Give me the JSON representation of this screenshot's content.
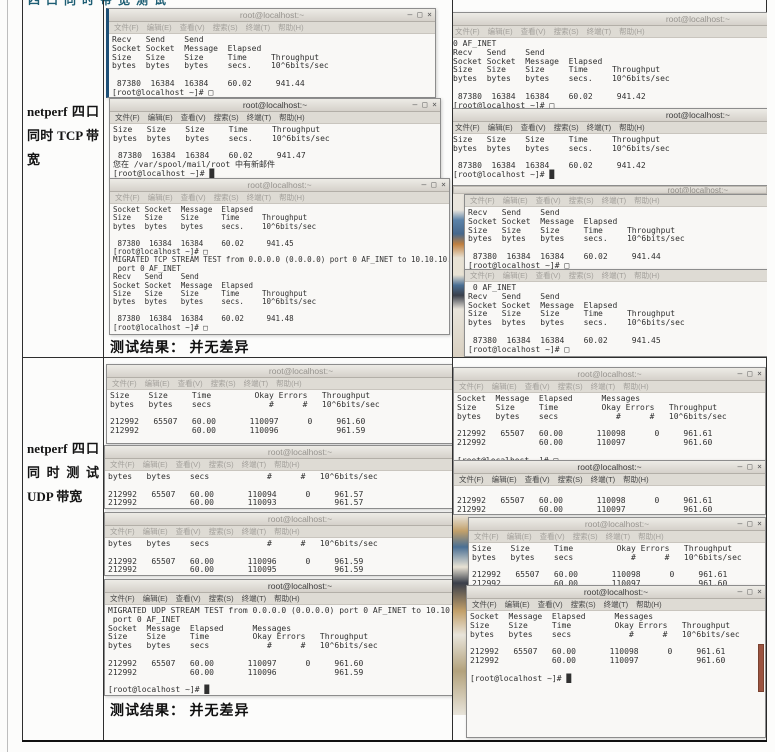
{
  "page": {
    "top_clipped_text": "四口同时带宽测试"
  },
  "terminal": {
    "title": "root@localhost:~",
    "menu": [
      "文件(F)",
      "编辑(E)",
      "查看(V)",
      "搜索(S)",
      "终端(T)",
      "帮助(H)"
    ],
    "buttons": {
      "min": "–",
      "max": "□",
      "close": "×"
    }
  },
  "rows": [
    {
      "header": "netperf 四口同时 TCP 带宽",
      "caption": "测试结果： 并无差异",
      "left": [
        {
          "body": "Recv   Send    Send\nSocket Socket  Message  Elapsed\nSize   Size    Size     Time     Throughput\nbytes  bytes   bytes    secs.    10^6bits/sec\n\n 87380  16384  16384    60.02     941.44\n[root@localhost ~]# □"
        },
        {
          "body": "Size   Size    Size     Time     Throughput\nbytes  bytes   bytes    secs.    10^6bits/sec\n\n 87380  16384  16384    60.02     941.47\n您在 /var/spool/mail/root 中有新邮件\n[root@localhost ~]# █"
        },
        {
          "body": "Socket Socket  Message  Elapsed\nSize   Size    Size     Time     Throughput\nbytes  bytes   bytes    secs.    10^6bits/sec\n\n 87380  16384  16384    60.02     941.45\n[root@localhost ~]# □\nMIGRATED TCP STREAM TEST from 0.0.0.0 (0.0.0.0) port 0 AF_INET to 10.10.10.11 ()\n port 0 AF_INET\nRecv   Send    Send\nSocket Socket  Message  Elapsed\nSize   Size    Size     Time     Throughput\nbytes  bytes   bytes    secs.    10^6bits/sec\n\n 87380  16384  16384    60.02     941.48\n[root@localhost ~]# □"
        }
      ],
      "right": [
        {
          "body": "0 AF_INET\nRecv   Send    Send\nSocket Socket  Message  Elapsed\nSize   Size    Size     Time     Throughput\nbytes  bytes   bytes    secs.    10^6bits/sec\n\n 87380  16384  16384    60.02     941.42\n[root@localhost ~]# □"
        },
        {
          "body": "Size   Size    Size     Time     Throughput\nbytes  bytes   bytes    secs.    10^6bits/sec\n\n 87380  16384  16384    60.02     941.42\n[root@localhost ~]# █"
        },
        {
          "body": "Recv   Send    Send\nSocket Socket  Message  Elapsed\nSize   Size    Size     Time     Throughput\nbytes  bytes   bytes    secs.    10^6bits/sec\n\n 87380  16384  16384    60.02     941.44\n[root@localhost ~]# □"
        },
        {
          "body": " 0 AF_INET\nRecv   Send    Send\nSocket Socket  Message  Elapsed\nSize   Size    Size     Time     Throughput\nbytes  bytes   bytes    secs.    10^6bits/sec\n\n 87380  16384  16384    60.02     941.45\n[root@localhost ~]# □"
        }
      ]
    },
    {
      "header": "netperf 四口同时测试 UDP 带宽",
      "caption": "测试结果： 并无差异",
      "left": [
        {
          "body": "Size    Size     Time         Okay Errors   Throughput\nbytes   bytes    secs            #      #   10^6bits/sec\n\n212992   65507   60.00       110097      0     961.60\n212992           60.00       110096            961.59"
        },
        {
          "body": "bytes   bytes    secs            #      #   10^6bits/sec\n\n212992   65507   60.00       110094      0     961.57\n212992           60.00       110093            961.57"
        },
        {
          "body": "bytes   bytes    secs            #      #   10^6bits/sec\n\n212992   65507   60.00       110096      0     961.59\n212992           60.00       110095            961.59"
        },
        {
          "body": "MIGRATED UDP STREAM TEST from 0.0.0.0 (0.0.0.0) port 0 AF_INET to 10.10.1\n port 0 AF_INET\nSocket  Message  Elapsed      Messages\nSize    Size     Time         Okay Errors   Throughput\nbytes   bytes    secs            #      #   10^6bits/sec\n\n212992   65507   60.00       110097      0     961.60\n212992           60.00       110096            961.59\n\n[root@localhost ~]# █"
        }
      ],
      "right": [
        {
          "body": "Socket  Message  Elapsed      Messages\nSize    Size     Time         Okay Errors   Throughput\nbytes   bytes    secs            #      #   10^6bits/sec\n\n212992   65507   60.00       110098      0     961.61\n212992           60.00       110097            961.60\n\n[root@localhost ~]# □"
        },
        {
          "body": "\n212992   65507   60.00       110098      0     961.61\n212992           60.00       110097            961.60"
        },
        {
          "body": "Size    Size     Time         Okay Errors   Throughput\nbytes   bytes    secs            #      #   10^6bits/sec\n\n212992   65507   60.00       110098      0     961.61\n212992           60.00       110097            961.60"
        },
        {
          "body": "Socket  Message  Elapsed      Messages\nSize    Size     Time         Okay Errors   Throughput\nbytes   bytes    secs            #      #   10^6bits/sec\n\n212992   65507   60.00       110098      0     961.61\n212992           60.00       110097            961.60\n\n[root@localhost ~]# █"
        }
      ]
    }
  ]
}
